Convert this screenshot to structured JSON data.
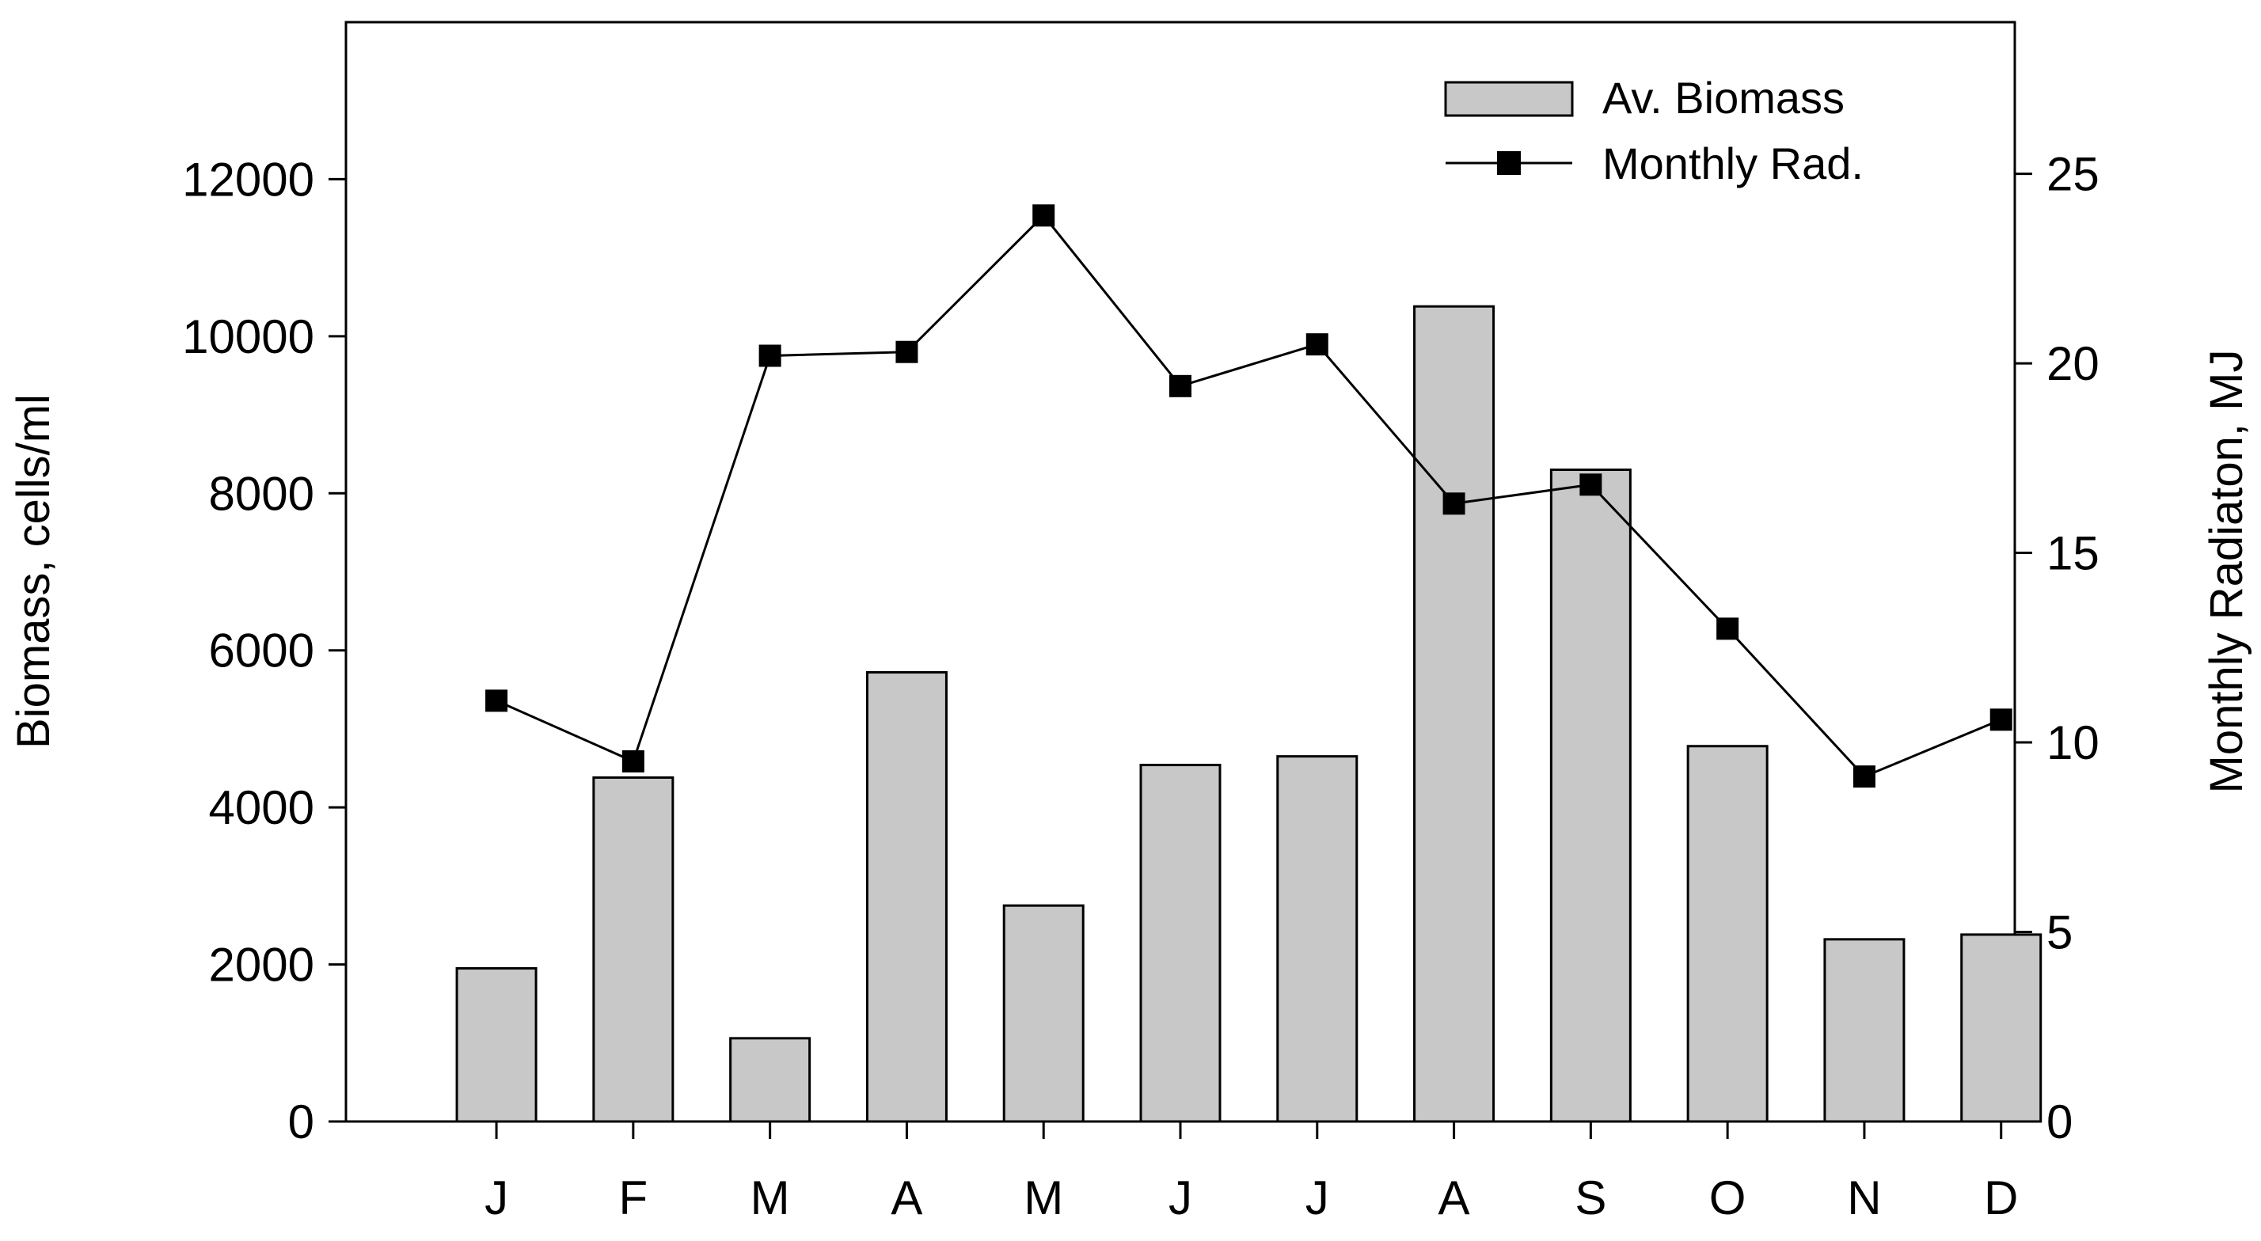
{
  "chart_data": {
    "type": "bar",
    "categories": [
      "J",
      "F",
      "M",
      "A",
      "M",
      "J",
      "J",
      "A",
      "S",
      "O",
      "N",
      "D"
    ],
    "series": [
      {
        "name": "Av. Biomass",
        "kind": "bar",
        "axis": "left",
        "color": "#c8c8c8",
        "values": [
          1950,
          4380,
          1060,
          5720,
          2750,
          4540,
          4650,
          10380,
          8300,
          4780,
          2320,
          2380
        ]
      },
      {
        "name": "Monthly Rad.",
        "kind": "line",
        "axis": "right",
        "color": "#000000",
        "marker": "square",
        "values": [
          11.1,
          9.5,
          20.2,
          20.3,
          23.9,
          19.4,
          20.5,
          16.3,
          16.8,
          13.0,
          9.1,
          10.6
        ]
      }
    ],
    "ylabel": "Biomass, cells/ml",
    "ylabel_right": "Monthly Radiaton, MJ",
    "xlabel": "",
    "ylim": [
      0,
      14000
    ],
    "ylim_right": [
      0,
      29
    ],
    "yticks": [
      "0",
      "2000",
      "4000",
      "6000",
      "8000",
      "10000",
      "12000"
    ],
    "yticks_right": [
      "0",
      "5",
      "10",
      "15",
      "20",
      "25"
    ],
    "legend": "top-right",
    "grid": false
  }
}
